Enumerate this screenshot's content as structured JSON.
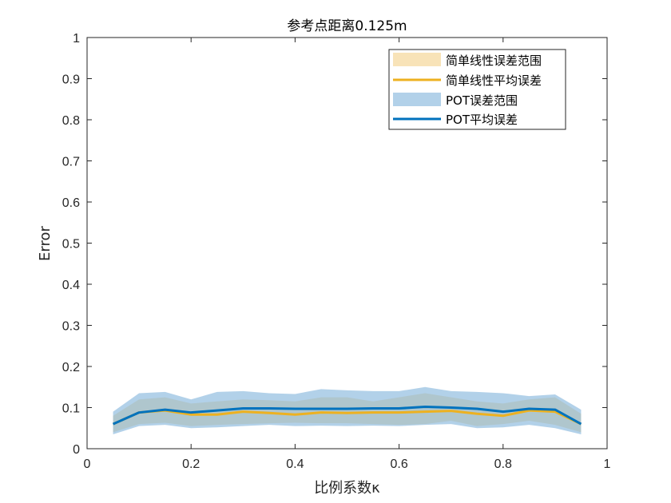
{
  "chart_data": {
    "type": "area",
    "title": "参考点距离0.125m",
    "xlabel": "比例系数κ",
    "ylabel": "Error",
    "xlim": [
      0,
      1
    ],
    "ylim": [
      0,
      1
    ],
    "xticks": [
      "0",
      "0.2",
      "0.4",
      "0.6",
      "0.8",
      "1"
    ],
    "yticks": [
      "0",
      "0.1",
      "0.2",
      "0.3",
      "0.4",
      "0.5",
      "0.6",
      "0.7",
      "0.8",
      "0.9",
      "1"
    ],
    "grid": false,
    "legend_position": "top-right",
    "x": [
      0.05,
      0.1,
      0.15,
      0.2,
      0.25,
      0.3,
      0.35,
      0.4,
      0.45,
      0.5,
      0.55,
      0.6,
      0.65,
      0.7,
      0.75,
      0.8,
      0.85,
      0.9,
      0.95
    ],
    "series": [
      {
        "name": "简单线性误差范围",
        "kind": "band",
        "color": "#F6D9A0",
        "lower": [
          0.04,
          0.06,
          0.063,
          0.055,
          0.058,
          0.06,
          0.062,
          0.063,
          0.062,
          0.062,
          0.06,
          0.058,
          0.06,
          0.068,
          0.055,
          0.06,
          0.068,
          0.058,
          0.04
        ],
        "upper": [
          0.08,
          0.12,
          0.125,
          0.11,
          0.115,
          0.12,
          0.118,
          0.115,
          0.125,
          0.125,
          0.115,
          0.125,
          0.135,
          0.125,
          0.115,
          0.11,
          0.12,
          0.125,
          0.085
        ]
      },
      {
        "name": "简单线性平均误差",
        "kind": "line",
        "color": "#EDB120",
        "values": [
          0.06,
          0.088,
          0.093,
          0.083,
          0.083,
          0.09,
          0.087,
          0.083,
          0.088,
          0.087,
          0.088,
          0.088,
          0.09,
          0.092,
          0.085,
          0.08,
          0.093,
          0.09,
          0.06
        ]
      },
      {
        "name": "POT误差范围",
        "kind": "band",
        "color": "#7FB2DA",
        "lower": [
          0.035,
          0.055,
          0.058,
          0.05,
          0.052,
          0.055,
          0.058,
          0.055,
          0.056,
          0.055,
          0.056,
          0.055,
          0.058,
          0.06,
          0.05,
          0.052,
          0.058,
          0.05,
          0.035
        ],
        "upper": [
          0.09,
          0.135,
          0.138,
          0.12,
          0.138,
          0.14,
          0.135,
          0.133,
          0.145,
          0.142,
          0.14,
          0.14,
          0.15,
          0.14,
          0.138,
          0.135,
          0.128,
          0.132,
          0.095
        ]
      },
      {
        "name": "POT平均误差",
        "kind": "line",
        "color": "#0072BD",
        "values": [
          0.06,
          0.088,
          0.095,
          0.088,
          0.093,
          0.098,
          0.098,
          0.097,
          0.097,
          0.097,
          0.098,
          0.098,
          0.102,
          0.1,
          0.097,
          0.09,
          0.097,
          0.095,
          0.06
        ]
      }
    ]
  }
}
